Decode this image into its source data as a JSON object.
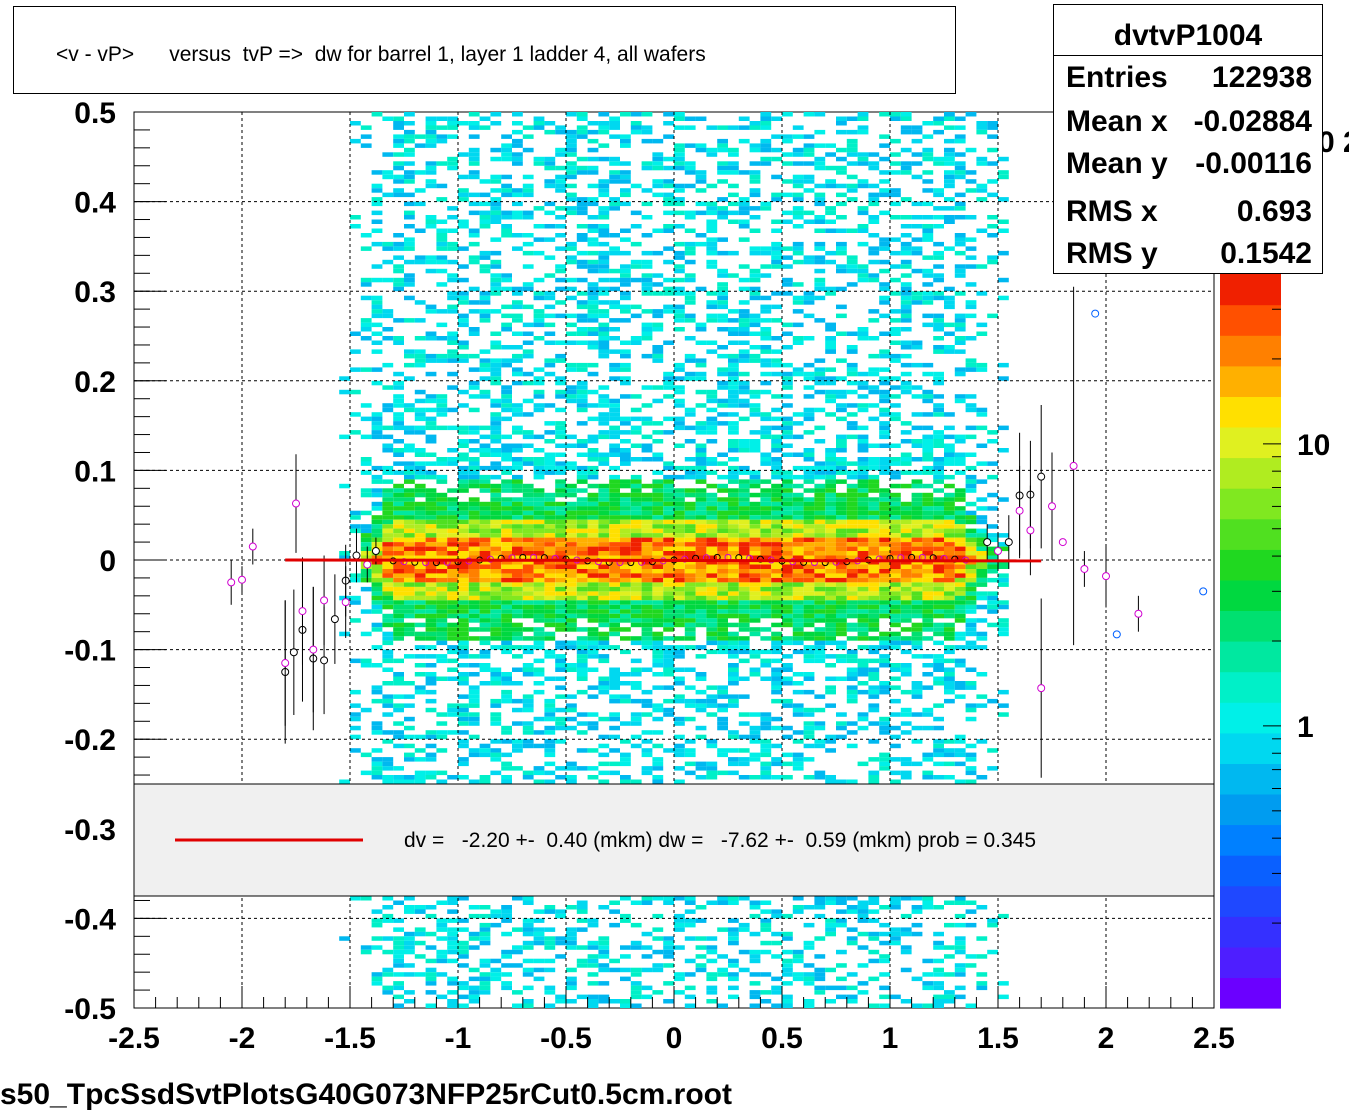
{
  "title": "<v - vP>      versus  tvP =>  dw for barrel 1, layer 1 ladder 4, all wafers",
  "stats": {
    "name": "dvtvP1004",
    "rows": [
      {
        "label": "Entries",
        "value": "122938"
      },
      {
        "label": "Mean x",
        "value": "-0.02884"
      },
      {
        "label": "Mean y",
        "value": "-0.00116"
      },
      {
        "label": "RMS x",
        "value": "0.693"
      },
      {
        "label": "RMS y",
        "value": "0.1542"
      }
    ]
  },
  "legend": {
    "text": "dv =   -2.20 +-  0.40 (mkm) dw =   -7.62 +-  0.59 (mkm) prob = 0.345",
    "line_color": "#e00000"
  },
  "footer": "s50_TpcSsdSvtPlotsG40G073NFP25rCut0.5cm.root",
  "colorbar": {
    "labels": [
      {
        "text": "10",
        "value": 10
      },
      {
        "text": "1",
        "value": 1
      }
    ],
    "clipped_exponent": "0 2"
  },
  "chart_data": {
    "type": "heatmap",
    "title": "<v - vP>      versus  tvP =>  dw for barrel 1, layer 1 ladder 4, all wafers",
    "xlabel": "",
    "ylabel": "",
    "xlim": [
      -2.5,
      2.5
    ],
    "ylim": [
      -0.5,
      0.5
    ],
    "x_ticks": [
      {
        "label": "-2.5",
        "value": -2.5
      },
      {
        "label": "-2",
        "value": -2
      },
      {
        "label": "-1.5",
        "value": -1.5
      },
      {
        "label": "-1",
        "value": -1
      },
      {
        "label": "-0.5",
        "value": -0.5
      },
      {
        "label": "0",
        "value": 0
      },
      {
        "label": "0.5",
        "value": 0.5
      },
      {
        "label": "1",
        "value": 1
      },
      {
        "label": "1.5",
        "value": 1.5
      },
      {
        "label": "2",
        "value": 2
      },
      {
        "label": "2.5",
        "value": 2.5
      }
    ],
    "y_ticks": [
      {
        "label": "0.5",
        "value": 0.5
      },
      {
        "label": "0.4",
        "value": 0.4
      },
      {
        "label": "0.3",
        "value": 0.3
      },
      {
        "label": "0.2",
        "value": 0.2
      },
      {
        "label": "0.1",
        "value": 0.1
      },
      {
        "label": "0",
        "value": 0
      },
      {
        "label": "-0.1",
        "value": -0.1
      },
      {
        "label": "-0.2",
        "value": -0.2
      },
      {
        "label": "-0.3",
        "value": -0.3
      },
      {
        "label": "-0.4",
        "value": -0.4
      },
      {
        "label": "-0.5",
        "value": -0.5
      }
    ],
    "grid": true,
    "z_scale": "log",
    "fit_line": {
      "x": [
        -1.8,
        1.7
      ],
      "y": [
        0.0,
        -0.001
      ],
      "color": "#e00000"
    },
    "profile_points": [
      {
        "x": -2.05,
        "y": -0.025,
        "err": 0.025,
        "color": "magenta"
      },
      {
        "x": -2.0,
        "y": -0.022,
        "err": 0.015,
        "color": "magenta"
      },
      {
        "x": -1.95,
        "y": 0.015,
        "err": 0.02,
        "color": "magenta"
      },
      {
        "x": -1.8,
        "y": -0.125,
        "err": 0.08,
        "color": "black"
      },
      {
        "x": -1.8,
        "y": -0.115,
        "err": 0.07,
        "color": "magenta"
      },
      {
        "x": -1.76,
        "y": -0.103,
        "err": 0.07,
        "color": "black"
      },
      {
        "x": -1.75,
        "y": 0.063,
        "err": 0.055,
        "color": "magenta"
      },
      {
        "x": -1.72,
        "y": -0.078,
        "err": 0.08,
        "color": "black"
      },
      {
        "x": -1.72,
        "y": -0.057,
        "err": 0.06,
        "color": "magenta"
      },
      {
        "x": -1.67,
        "y": -0.11,
        "err": 0.08,
        "color": "black"
      },
      {
        "x": -1.67,
        "y": -0.1,
        "err": 0.07,
        "color": "magenta"
      },
      {
        "x": -1.62,
        "y": -0.112,
        "err": 0.06,
        "color": "black"
      },
      {
        "x": -1.62,
        "y": -0.045,
        "err": 0.05,
        "color": "magenta"
      },
      {
        "x": -1.57,
        "y": -0.066,
        "err": 0.05,
        "color": "black"
      },
      {
        "x": -1.52,
        "y": -0.023,
        "err": 0.04,
        "color": "black"
      },
      {
        "x": -1.52,
        "y": -0.047,
        "err": 0.04,
        "color": "magenta"
      },
      {
        "x": -1.47,
        "y": 0.005,
        "err": 0.03,
        "color": "black"
      },
      {
        "x": -1.42,
        "y": -0.005,
        "err": 0.02,
        "color": "magenta"
      },
      {
        "x": -1.38,
        "y": 0.01,
        "err": 0.015,
        "color": "black"
      },
      {
        "x": 1.45,
        "y": 0.02,
        "err": 0.02,
        "color": "black"
      },
      {
        "x": 1.5,
        "y": 0.01,
        "err": 0.02,
        "color": "magenta"
      },
      {
        "x": 1.55,
        "y": 0.02,
        "err": 0.03,
        "color": "black"
      },
      {
        "x": 1.6,
        "y": 0.072,
        "err": 0.07,
        "color": "black"
      },
      {
        "x": 1.6,
        "y": 0.055,
        "err": 0.05,
        "color": "magenta"
      },
      {
        "x": 1.65,
        "y": 0.073,
        "err": 0.06,
        "color": "black"
      },
      {
        "x": 1.65,
        "y": 0.033,
        "err": 0.05,
        "color": "magenta"
      },
      {
        "x": 1.7,
        "y": 0.093,
        "err": 0.08,
        "color": "black"
      },
      {
        "x": 1.7,
        "y": -0.143,
        "err": 0.1,
        "color": "magenta"
      },
      {
        "x": 1.75,
        "y": 0.06,
        "err": 0.06,
        "color": "magenta"
      },
      {
        "x": 1.8,
        "y": 0.02,
        "err": 0.0,
        "color": "magenta"
      },
      {
        "x": 1.85,
        "y": 0.105,
        "err": 0.2,
        "color": "magenta"
      },
      {
        "x": 1.9,
        "y": -0.01,
        "err": 0.02,
        "color": "magenta"
      },
      {
        "x": 1.95,
        "y": 0.275,
        "err": 0.0,
        "color": "blue"
      },
      {
        "x": 2.0,
        "y": -0.018,
        "err": 0.035,
        "color": "magenta"
      },
      {
        "x": 2.05,
        "y": -0.083,
        "err": 0.0,
        "color": "blue"
      },
      {
        "x": 2.15,
        "y": -0.06,
        "err": 0.02,
        "color": "magenta"
      },
      {
        "x": 2.45,
        "y": -0.035,
        "err": 0.0,
        "color": "blue"
      }
    ]
  }
}
